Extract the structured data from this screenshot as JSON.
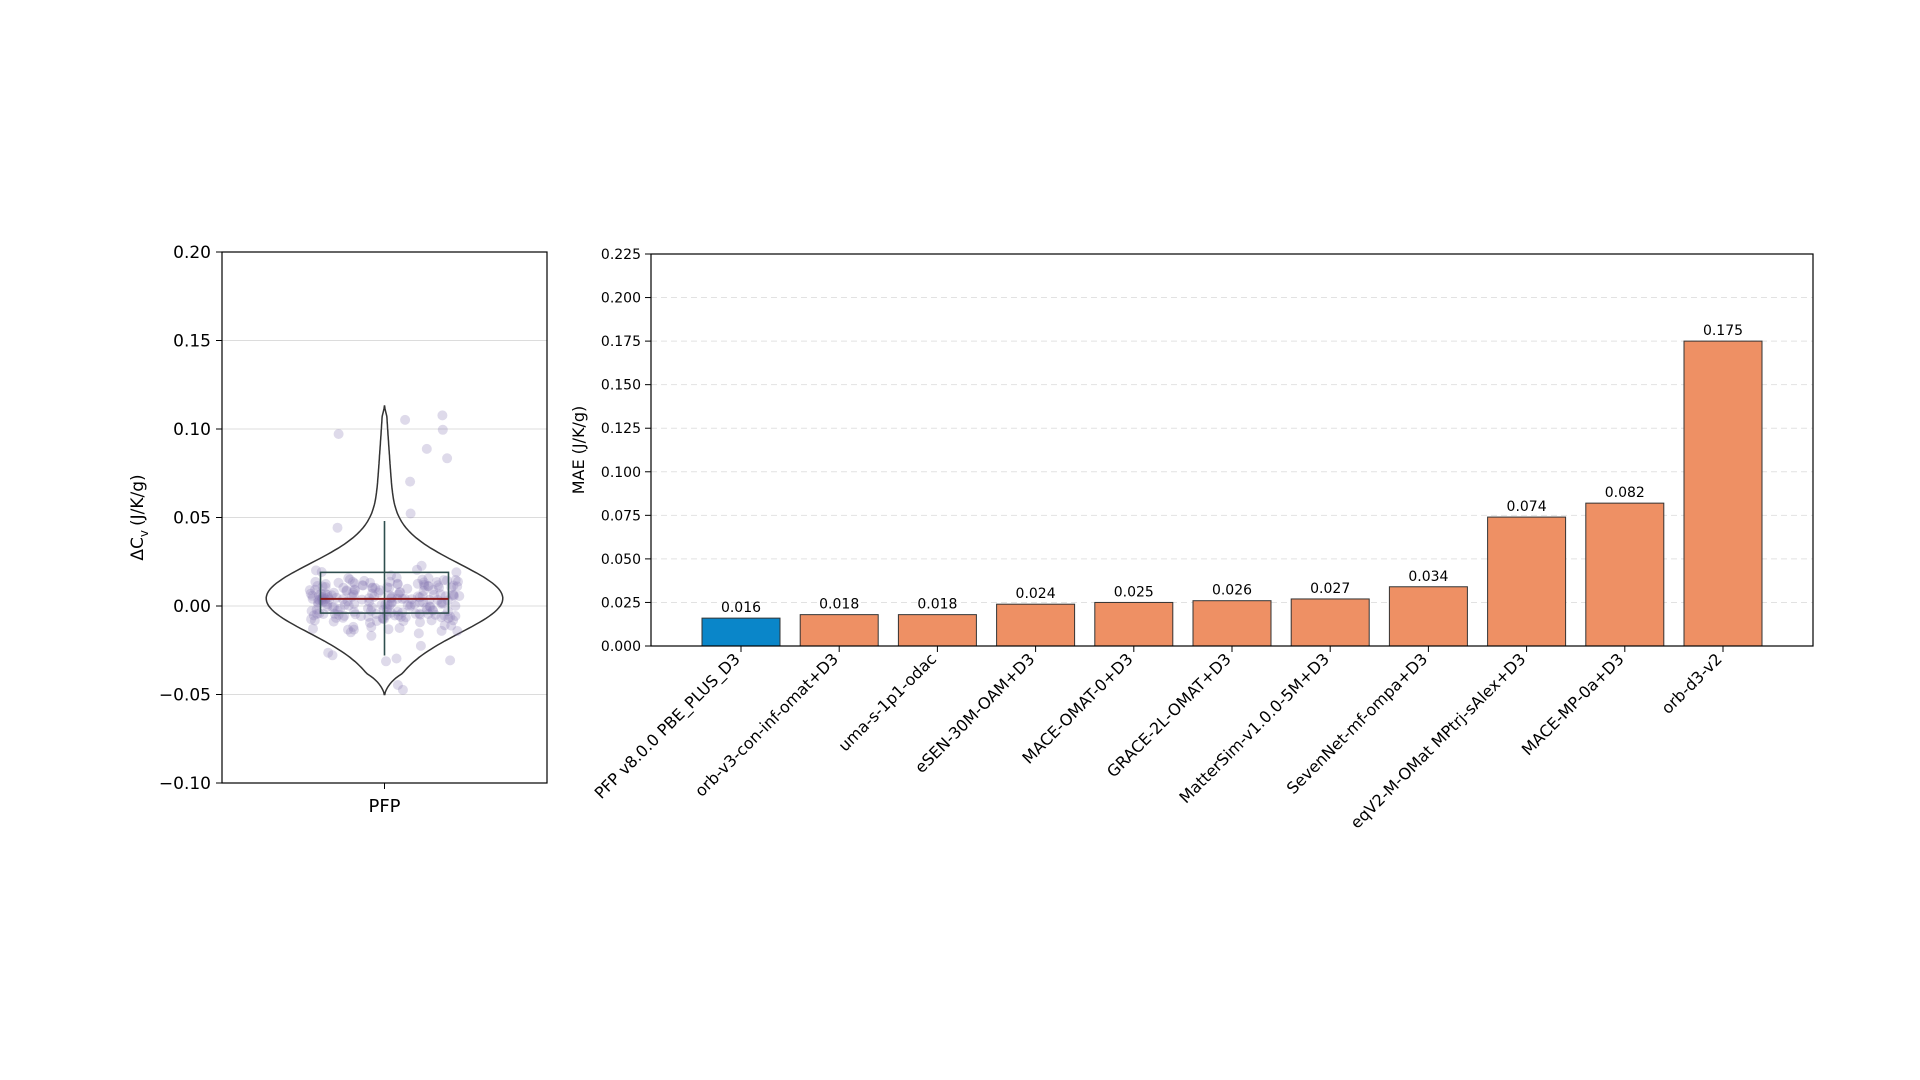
{
  "chart_data": [
    {
      "type": "violin",
      "category": "PFP",
      "ylabel": "ΔC",
      "ylabel_sub": "v",
      "ylabel_unit": "(J/K/g)",
      "ylim": [
        -0.1,
        0.2
      ],
      "yticks": [
        -0.1,
        -0.05,
        0.0,
        0.05,
        0.1,
        0.15,
        0.2
      ],
      "ytick_labels": [
        "−0.10",
        "−0.05",
        "0.00",
        "0.05",
        "0.10",
        "0.15",
        "0.20"
      ],
      "grid": true,
      "box": {
        "q1": -0.004,
        "median": 0.004,
        "q3": 0.019,
        "whisker_low": -0.028,
        "whisker_high": 0.048
      },
      "violin_range": [
        -0.05,
        0.113
      ],
      "point_color": "#8a79b5",
      "median_color": "#8b1a1a",
      "box_color": "#2f4f4f"
    },
    {
      "type": "bar",
      "title": "",
      "xlabel": "",
      "ylabel": "MAE (J/K/g)",
      "ylim": [
        0,
        0.225
      ],
      "yticks": [
        0.0,
        0.025,
        0.05,
        0.075,
        0.1,
        0.125,
        0.15,
        0.175,
        0.2,
        0.225
      ],
      "ytick_labels": [
        "0.000",
        "0.025",
        "0.050",
        "0.075",
        "0.100",
        "0.125",
        "0.150",
        "0.175",
        "0.200",
        "0.225"
      ],
      "grid": "dashed",
      "categories": [
        "PFP v8.0.0 PBE_PLUS_D3",
        "orb-v3-con-inf-omat+D3",
        "uma-s-1p1-odac",
        "eSEN-30M-OAM+D3",
        "MACE-OMAT-0+D3",
        "GRACE-2L-OMAT+D3",
        "MatterSim-v1.0.0-5M+D3",
        "SevenNet-mf-ompa+D3",
        "eqV2-M-OMat MPtrj-sAlex+D3",
        "MACE-MP-0a+D3",
        "orb-d3-v2"
      ],
      "values": [
        0.016,
        0.018,
        0.018,
        0.024,
        0.025,
        0.026,
        0.027,
        0.034,
        0.074,
        0.082,
        0.175
      ],
      "value_labels": [
        "0.016",
        "0.018",
        "0.018",
        "0.024",
        "0.025",
        "0.026",
        "0.027",
        "0.034",
        "0.074",
        "0.082",
        "0.175"
      ],
      "colors": [
        "#0a86c9",
        "#ee9064",
        "#ee9064",
        "#ee9064",
        "#ee9064",
        "#ee9064",
        "#ee9064",
        "#ee9064",
        "#ee9064",
        "#ee9064",
        "#ee9064"
      ]
    }
  ]
}
